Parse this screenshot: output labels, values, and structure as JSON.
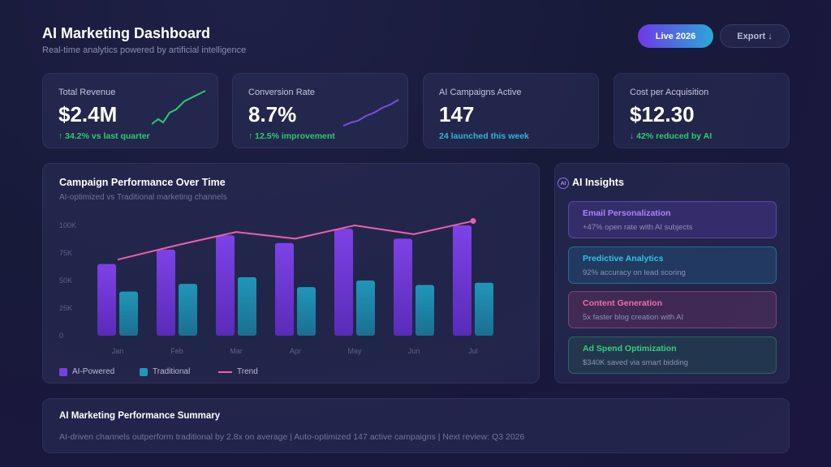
{
  "header": {
    "title": "AI Marketing Dashboard",
    "subtitle": "Real-time analytics powered by artificial intelligence",
    "live_label": "Live 2026",
    "export_label": "Export ↓"
  },
  "kpis": [
    {
      "label": "Total Revenue",
      "value": "$2.4M",
      "delta": "↑ 34.2% vs last quarter",
      "delta_color": "#2ccb72",
      "spark_color": "#2ccb72"
    },
    {
      "label": "Conversion Rate",
      "value": "8.7%",
      "delta": "↑ 12.5% improvement",
      "delta_color": "#2ccb72",
      "spark_color": "#7b4de0"
    },
    {
      "label": "AI Campaigns Active",
      "value": "147",
      "delta": "24 launched this week",
      "delta_color": "#2bb6d8"
    },
    {
      "label": "Cost per Acquisition",
      "value": "$12.30",
      "delta": "↓ 42% reduced by AI",
      "delta_color": "#2ccb72"
    }
  ],
  "chart": {
    "title": "Campaign Performance Over Time",
    "subtitle": "AI-optimized vs Traditional marketing channels",
    "legend": {
      "ai": "AI-Powered",
      "traditional": "Traditional",
      "trend": "Trend"
    }
  },
  "chart_data": {
    "type": "bar",
    "categories": [
      "Jan",
      "Feb",
      "Mar",
      "Apr",
      "May",
      "Jun",
      "Jul"
    ],
    "y_ticks": [
      "0",
      "25K",
      "50K",
      "75K",
      "100K"
    ],
    "ylim": [
      0,
      100000
    ],
    "series": [
      {
        "name": "AI-Powered",
        "type": "bar",
        "color": "#7a3fe0",
        "values": [
          65000,
          78000,
          91000,
          84000,
          97000,
          88000,
          100000
        ]
      },
      {
        "name": "Traditional",
        "type": "bar",
        "color": "#1f98b8",
        "values": [
          40000,
          47000,
          53000,
          44000,
          50000,
          46000,
          48000
        ]
      },
      {
        "name": "Trend",
        "type": "line",
        "color": "#ec5fae",
        "values": [
          69000,
          82000,
          94000,
          88000,
          100000,
          92000,
          104000
        ]
      }
    ],
    "grid": false,
    "legend_position": "bottom-left"
  },
  "insights": {
    "title": "AI Insights",
    "icon_text": "AI",
    "items": [
      {
        "title": "Email Personalization",
        "desc": "+47% open rate with AI subjects"
      },
      {
        "title": "Predictive Analytics",
        "desc": "92% accuracy on lead scoring"
      },
      {
        "title": "Content Generation",
        "desc": "5x faster blog creation with AI"
      },
      {
        "title": "Ad Spend Optimization",
        "desc": "$340K saved via smart bidding"
      }
    ]
  },
  "summary": {
    "title": "AI Marketing Performance Summary",
    "text": "AI-driven channels outperform traditional by 2.8x on average | Auto-optimized 147 active campaigns | Next review: Q3 2026"
  }
}
